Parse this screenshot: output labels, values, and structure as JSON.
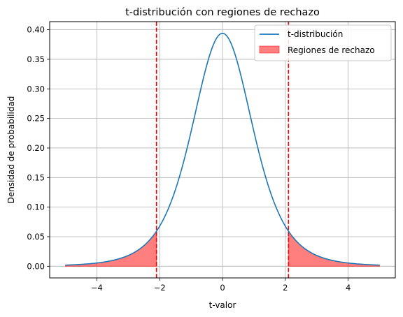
{
  "chart_data": {
    "type": "line",
    "title": "t-distribución con regiones de rechazo",
    "xlabel": "t-valor",
    "ylabel": "Densidad de probabilidad",
    "xlim": [
      -5.5,
      5.5
    ],
    "ylim": [
      -0.0197,
      0.4137
    ],
    "xticks": [
      -4,
      -2,
      0,
      2,
      4
    ],
    "xtick_labels": [
      "−4",
      "−2",
      "0",
      "2",
      "4"
    ],
    "yticks": [
      0.0,
      0.05,
      0.1,
      0.15,
      0.2,
      0.25,
      0.3,
      0.35,
      0.4
    ],
    "ytick_labels": [
      "0.00",
      "0.05",
      "0.10",
      "0.15",
      "0.20",
      "0.25",
      "0.30",
      "0.35",
      "0.40"
    ],
    "grid": true,
    "legend_placement": "top-right",
    "series": [
      {
        "name": "t-distribución",
        "kind": "line",
        "color": "#1f77b4",
        "x": [
          -5.0,
          -4.5,
          -4.0,
          -3.5,
          -3.0,
          -2.5,
          -2.1,
          -2.0,
          -1.5,
          -1.0,
          -0.5,
          0.0,
          0.5,
          1.0,
          1.5,
          2.0,
          2.1,
          2.5,
          3.0,
          3.5,
          4.0,
          4.5,
          5.0
        ],
        "y": [
          0.0003,
          0.0006,
          0.0016,
          0.0038,
          0.0091,
          0.0215,
          0.0488,
          0.059,
          0.1266,
          0.2395,
          0.3485,
          0.394,
          0.3485,
          0.2395,
          0.1266,
          0.059,
          0.0488,
          0.0215,
          0.0091,
          0.0038,
          0.0016,
          0.0006,
          0.0003
        ]
      }
    ],
    "shaded_regions": {
      "name": "Regiones de rechazo",
      "color": "#ff0000",
      "alpha": 0.5,
      "ranges": [
        [
          -5.0,
          -2.1
        ],
        [
          2.1,
          5.0
        ]
      ]
    },
    "critical_lines": {
      "color": "#ff0000",
      "style": "dashed",
      "x": [
        -2.1,
        2.1
      ]
    }
  }
}
